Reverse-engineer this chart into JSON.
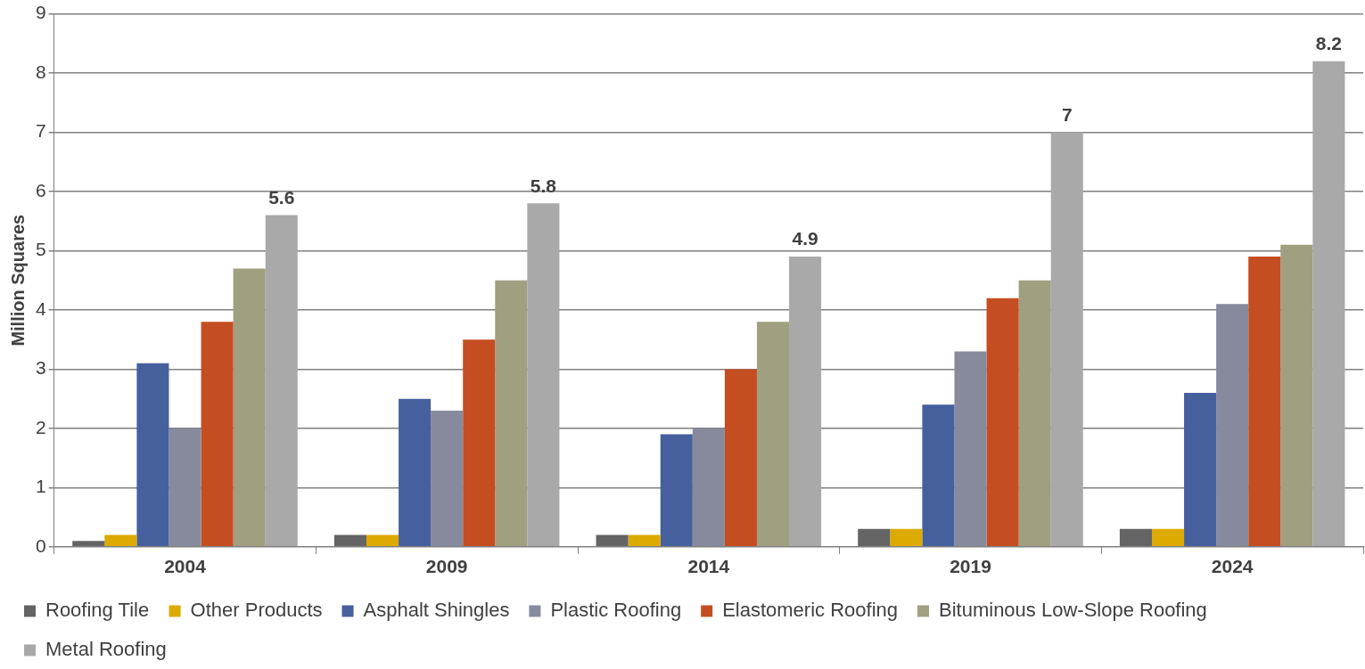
{
  "chart_data": {
    "type": "bar",
    "ylabel": "Million Squares",
    "categories": [
      "2004",
      "2009",
      "2014",
      "2019",
      "2024"
    ],
    "series": [
      {
        "name": "Roofing Tile",
        "color": "#646464",
        "values": [
          0.1,
          0.2,
          0.2,
          0.3,
          0.3
        ]
      },
      {
        "name": "Other Products",
        "color": "#dcaa00",
        "values": [
          0.2,
          0.2,
          0.2,
          0.3,
          0.3
        ]
      },
      {
        "name": "Asphalt Shingles",
        "color": "#46609e",
        "values": [
          3.1,
          2.5,
          1.9,
          2.4,
          2.6
        ]
      },
      {
        "name": "Plastic Roofing",
        "color": "#868a9c",
        "values": [
          2.0,
          2.3,
          2.0,
          3.3,
          4.1
        ]
      },
      {
        "name": "Elastomeric Roofing",
        "color": "#c44e22",
        "values": [
          3.8,
          3.5,
          3.0,
          4.2,
          4.9
        ]
      },
      {
        "name": "Bituminous Low-Slope Roofing",
        "color": "#a09f80",
        "values": [
          4.7,
          4.5,
          3.8,
          4.5,
          5.1
        ]
      },
      {
        "name": "Metal Roofing",
        "color": "#a9a9a9",
        "values": [
          5.6,
          5.8,
          4.9,
          7,
          8.2
        ],
        "value_labels": [
          "5.6",
          "5.8",
          "4.9",
          "7",
          "8.2"
        ]
      }
    ],
    "ylim": [
      0,
      9
    ],
    "yticks": [
      0,
      1,
      2,
      3,
      4,
      5,
      6,
      7,
      8,
      9
    ],
    "grid": "y",
    "legend": "bottom"
  }
}
